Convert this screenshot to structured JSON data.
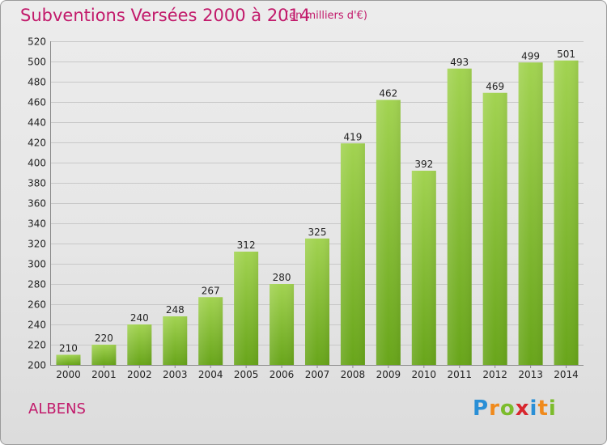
{
  "header": {
    "title": "Subventions Versées 2000 à 2014",
    "unit": "(en milliers d'€)"
  },
  "footer": {
    "city": "ALBENS",
    "logo_text": "Proxiti"
  },
  "colors": {
    "accent": "#c21a6b",
    "bar_top": "#a2d351",
    "bar_bottom": "#68a51a",
    "grid": "#c8c8c8"
  },
  "chart_data": {
    "type": "bar",
    "title": "Subventions Versées 2000 à 2014",
    "subtitle": "(en milliers d'€)",
    "xlabel": "",
    "ylabel": "",
    "categories": [
      "2000",
      "2001",
      "2002",
      "2003",
      "2004",
      "2005",
      "2006",
      "2007",
      "2008",
      "2009",
      "2010",
      "2011",
      "2012",
      "2013",
      "2014"
    ],
    "values": [
      210,
      220,
      240,
      248,
      267,
      312,
      280,
      325,
      419,
      462,
      392,
      493,
      469,
      499,
      501
    ],
    "ylim": [
      200,
      520
    ],
    "yticks": [
      200,
      220,
      240,
      260,
      280,
      300,
      320,
      340,
      360,
      380,
      400,
      420,
      440,
      460,
      480,
      500,
      520
    ],
    "grid": true,
    "legend": "none"
  }
}
